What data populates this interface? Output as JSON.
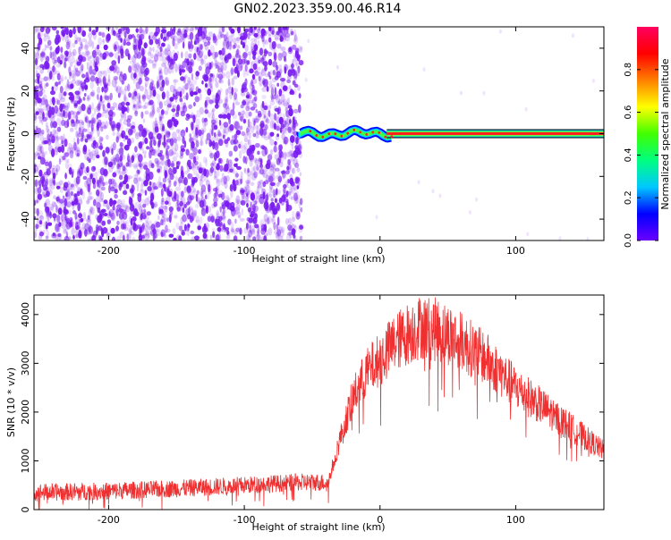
{
  "figure": {
    "title": "GN02.2023.359.00.46.R14"
  },
  "colors": {
    "noise": "#7a1cf0",
    "snr_line": "#f03030",
    "centerline": "#e03030",
    "colorbar_stops": [
      "#6a00ff",
      "#0000ff",
      "#00c8ff",
      "#00ff80",
      "#40ff00",
      "#ffff00",
      "#ff8000",
      "#ff0000",
      "#ff0060"
    ]
  },
  "chart_data": [
    {
      "type": "heatmap",
      "title": "",
      "xlabel": "Height of straight line (km)",
      "ylabel": "Frequency (Hz)",
      "xlim": [
        -255,
        165
      ],
      "ylim": [
        -50,
        50
      ],
      "xticks": [
        -200,
        -100,
        0,
        100
      ],
      "yticks": [
        -40,
        -20,
        0,
        20,
        40
      ],
      "noise_region_x": [
        -255,
        -58
      ],
      "signal_start_x": -58,
      "signal_frequency": 0,
      "colorbar": {
        "label": "Normalized spectral amplitude",
        "range": [
          0,
          1
        ],
        "ticks": [
          0.0,
          0.2,
          0.4,
          0.6,
          0.8
        ]
      }
    },
    {
      "type": "line",
      "title": "",
      "xlabel": "Height of straight line (km)",
      "ylabel": "SNR (10 * v/v)",
      "xlim": [
        -255,
        165
      ],
      "ylim": [
        0,
        4400
      ],
      "xticks": [
        -200,
        -100,
        0,
        100
      ],
      "yticks": [
        0,
        1000,
        2000,
        3000,
        4000
      ],
      "series": [
        {
          "x": [
            -255,
            -200,
            -150,
            -100,
            -60,
            -38,
            -30,
            -20,
            -10,
            0,
            10,
            20,
            30,
            40,
            50,
            60,
            80,
            100,
            120,
            140,
            165
          ],
          "y": [
            350,
            380,
            430,
            500,
            560,
            560,
            1400,
            2300,
            2800,
            3100,
            3400,
            3600,
            3750,
            3700,
            3600,
            3450,
            3050,
            2500,
            2100,
            1700,
            1200
          ]
        }
      ]
    }
  ]
}
